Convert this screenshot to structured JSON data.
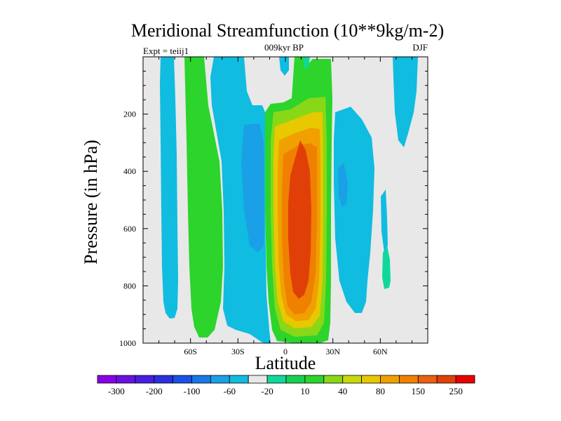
{
  "chart_data": {
    "type": "heatmap",
    "title": "Meridional Streamfunction (10**9kg/m-2)",
    "subtitle_left": "Expt = teiij1",
    "subtitle_center": "009kyr BP",
    "subtitle_right": "DJF",
    "xlabel": "Latitude",
    "ylabel": "Pressure (in hPa)",
    "xlim": [
      -90,
      90
    ],
    "ylim": [
      1000,
      0
    ],
    "x_ticks": [
      {
        "value": -60,
        "label": "60S"
      },
      {
        "value": -30,
        "label": "30S"
      },
      {
        "value": 0,
        "label": "0"
      },
      {
        "value": 30,
        "label": "30N"
      },
      {
        "value": 60,
        "label": "60N"
      }
    ],
    "y_ticks": [
      {
        "value": 200,
        "label": "200"
      },
      {
        "value": 400,
        "label": "400"
      },
      {
        "value": 600,
        "label": "600"
      },
      {
        "value": 800,
        "label": "800"
      },
      {
        "value": 1000,
        "label": "1000"
      }
    ],
    "colorbar": {
      "labels": [
        "-300",
        "-200",
        "-100",
        "-60",
        "-20",
        "10",
        "40",
        "80",
        "150",
        "250"
      ],
      "colors": [
        "#8a00e6",
        "#6a10e0",
        "#4a1ee0",
        "#2a30e0",
        "#1a50e6",
        "#1778e6",
        "#1aa0e6",
        "#10bce0",
        "#e8e8e8",
        "#10d89c",
        "#18d050",
        "#2cd42c",
        "#88d818",
        "#c8d80a",
        "#e8c800",
        "#f0a000",
        "#f08000",
        "#e86010",
        "#e04008",
        "#e80000"
      ]
    },
    "background_color": "#e8e8e8",
    "regions": [
      {
        "name": "southern-polar-cell",
        "level": -20,
        "color": "#10bce0",
        "lat_range": [
          -76,
          -64
        ],
        "p_range": [
          0,
          960
        ]
      },
      {
        "name": "southern-ferrel-cell",
        "level": 40,
        "color": "#2cd42c",
        "lat_range": [
          -62,
          -48
        ],
        "p_range": [
          0,
          980
        ]
      },
      {
        "name": "southern-hadley-outer",
        "level": -20,
        "color": "#10bce0",
        "lat_range": [
          -46,
          -6
        ],
        "p_range": [
          100,
          990
        ]
      },
      {
        "name": "southern-hadley-inner",
        "level": -60,
        "color": "#1aa0e6",
        "lat_range": [
          -28,
          -12
        ],
        "p_range": [
          250,
          700
        ]
      },
      {
        "name": "tropical-updraft",
        "level": 40,
        "color": "#2cd42c",
        "lat_range": [
          -8,
          26
        ],
        "p_range": [
          0,
          1000
        ]
      },
      {
        "name": "hadley-core",
        "level": 250,
        "color": "#e04008",
        "lat_range": [
          2,
          16
        ],
        "p_range": [
          280,
          860
        ]
      },
      {
        "name": "northern-hadley",
        "level": -20,
        "color": "#10bce0",
        "lat_range": [
          28,
          58
        ],
        "p_range": [
          150,
          940
        ]
      },
      {
        "name": "northern-midlat-green",
        "level": 10,
        "color": "#10d89c",
        "lat_range": [
          60,
          66
        ],
        "p_range": [
          690,
          830
        ]
      },
      {
        "name": "northern-polar",
        "level": -20,
        "color": "#10bce0",
        "lat_range": [
          66,
          86
        ],
        "p_range": [
          0,
          420
        ]
      }
    ]
  }
}
